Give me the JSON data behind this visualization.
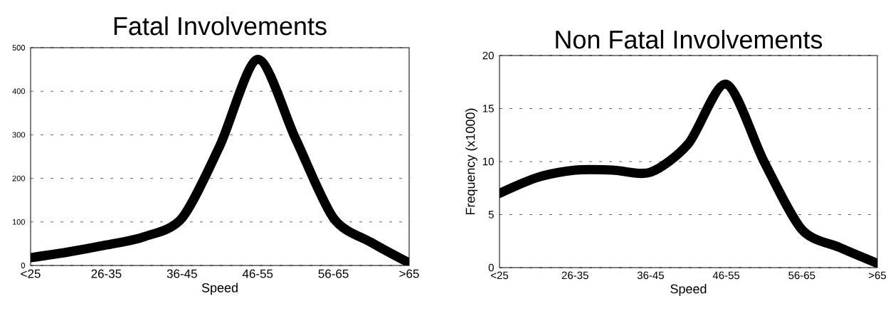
{
  "chart_data": [
    {
      "type": "line",
      "title": "Fatal Involvements",
      "xlabel": "Speed",
      "categories": [
        "<25",
        null,
        "26-35",
        null,
        "36-45",
        null,
        "46-55",
        null,
        "56-65",
        null,
        ">65"
      ],
      "values": [
        18,
        31,
        47,
        66,
        109,
        275,
        473,
        291,
        109,
        53,
        6
      ],
      "color": "#000000",
      "ylim": [
        0,
        500
      ],
      "yticks": [
        0,
        100,
        200,
        300,
        400,
        500
      ],
      "grid": "y",
      "line_style": "solid"
    },
    {
      "type": "line",
      "title": "Non Fatal Involvements",
      "xlabel": "Speed",
      "ylabel": "Frequency (x1000)",
      "categories": [
        "<25",
        null,
        "26-35",
        null,
        "36-45",
        null,
        "46-55",
        null,
        "56-65",
        null,
        ">65"
      ],
      "values": [
        7.0,
        8.5,
        9.2,
        9.2,
        9.0,
        11.7,
        17.3,
        10.0,
        3.6,
        1.9,
        0.4
      ],
      "color": "#000000",
      "ylim": [
        0,
        20
      ],
      "yticks": [
        0,
        5,
        10,
        15,
        20
      ],
      "grid": "y",
      "line_style": "solid"
    }
  ]
}
